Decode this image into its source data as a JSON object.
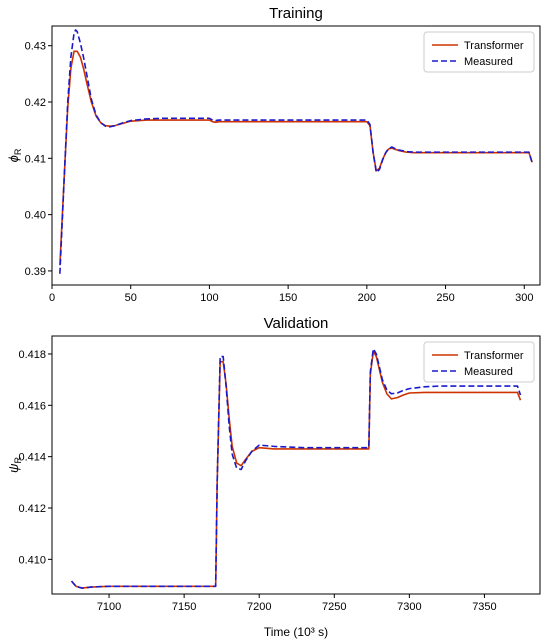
{
  "chart_data": [
    {
      "type": "line",
      "title": "Training",
      "xlabel": "",
      "ylabel": "ϕ_R",
      "ylabel_main": "ϕ",
      "ylabel_sub": "R",
      "xlim": [
        0,
        310
      ],
      "ylim": [
        0.3875,
        0.4335
      ],
      "xticks": [
        0,
        50,
        100,
        150,
        200,
        250,
        300
      ],
      "yticks": [
        0.39,
        0.4,
        0.41,
        0.42,
        0.43
      ],
      "ytick_labels": [
        "0.39",
        "0.40",
        "0.41",
        "0.42",
        "0.43"
      ],
      "grid": false,
      "legend": "top-right",
      "series": [
        {
          "name": "Transformer",
          "color": "#cc3300",
          "dash": "solid",
          "x": [
            5,
            8,
            10,
            12,
            14,
            16,
            18,
            20,
            22,
            25,
            28,
            31,
            34,
            37,
            40,
            45,
            50,
            60,
            70,
            80,
            90,
            100,
            102,
            104,
            106,
            110,
            120,
            140,
            160,
            180,
            200,
            202,
            204,
            206,
            208,
            210,
            212,
            214,
            216,
            218,
            220,
            225,
            230,
            240,
            260,
            280,
            300,
            303,
            305
          ],
          "y": [
            0.391,
            0.408,
            0.419,
            0.426,
            0.429,
            0.429,
            0.428,
            0.426,
            0.4235,
            0.42,
            0.4175,
            0.4163,
            0.4158,
            0.4157,
            0.4158,
            0.4162,
            0.4166,
            0.4168,
            0.4168,
            0.4168,
            0.4168,
            0.4168,
            0.4165,
            0.4164,
            0.4165,
            0.4165,
            0.4165,
            0.4165,
            0.4165,
            0.4165,
            0.4165,
            0.4158,
            0.411,
            0.4078,
            0.4082,
            0.4098,
            0.411,
            0.4117,
            0.4118,
            0.4116,
            0.4114,
            0.4111,
            0.411,
            0.411,
            0.411,
            0.411,
            0.411,
            0.411,
            0.4093
          ]
        },
        {
          "name": "Measured",
          "color": "#1a1acc",
          "dash": "dashed",
          "x": [
            5,
            8,
            10,
            12,
            14,
            15,
            16,
            18,
            20,
            22,
            25,
            28,
            31,
            34,
            37,
            40,
            45,
            50,
            60,
            70,
            80,
            90,
            100,
            102,
            104,
            106,
            110,
            120,
            140,
            160,
            180,
            200,
            202,
            204,
            206,
            208,
            210,
            212,
            214,
            216,
            218,
            220,
            225,
            230,
            240,
            260,
            280,
            300,
            303,
            305
          ],
          "y": [
            0.3895,
            0.408,
            0.42,
            0.428,
            0.4322,
            0.4328,
            0.4325,
            0.4305,
            0.428,
            0.425,
            0.4205,
            0.4177,
            0.4163,
            0.4157,
            0.4156,
            0.4158,
            0.4163,
            0.4167,
            0.417,
            0.4171,
            0.4171,
            0.4171,
            0.4171,
            0.4168,
            0.4167,
            0.4168,
            0.4168,
            0.4168,
            0.4168,
            0.4168,
            0.4168,
            0.4168,
            0.416,
            0.411,
            0.4075,
            0.408,
            0.4097,
            0.411,
            0.4118,
            0.412,
            0.4117,
            0.4115,
            0.4112,
            0.4111,
            0.4111,
            0.4111,
            0.4111,
            0.4111,
            0.4111,
            0.4092
          ]
        }
      ]
    },
    {
      "type": "line",
      "title": "Validation",
      "xlabel": "Time (10³ s)",
      "ylabel": "ψ_R",
      "ylabel_main": "ψ",
      "ylabel_sub": "R",
      "xlim": [
        7062,
        7387
      ],
      "ylim": [
        0.40865,
        0.4187
      ],
      "xticks": [
        7100,
        7150,
        7200,
        7250,
        7300,
        7350
      ],
      "yticks": [
        0.41,
        0.412,
        0.414,
        0.416,
        0.418
      ],
      "ytick_labels": [
        "0.410",
        "0.412",
        "0.414",
        "0.416",
        "0.418"
      ],
      "grid": false,
      "legend": "top-right",
      "series": [
        {
          "name": "Transformer",
          "color": "#cc3300",
          "dash": "solid",
          "x": [
            7075,
            7078,
            7082,
            7088,
            7100,
            7120,
            7150,
            7171,
            7172,
            7174,
            7176,
            7178,
            7180,
            7182,
            7185,
            7188,
            7191,
            7195,
            7200,
            7210,
            7230,
            7250,
            7273,
            7274,
            7276,
            7278,
            7280,
            7282,
            7285,
            7288,
            7292,
            7296,
            7300,
            7310,
            7320,
            7340,
            7360,
            7372,
            7374
          ],
          "y": [
            0.40915,
            0.40895,
            0.40888,
            0.40892,
            0.40895,
            0.40895,
            0.40895,
            0.40895,
            0.413,
            0.4177,
            0.4177,
            0.4168,
            0.4155,
            0.4144,
            0.41375,
            0.41365,
            0.4139,
            0.4142,
            0.41435,
            0.4143,
            0.4143,
            0.4143,
            0.4143,
            0.4172,
            0.4181,
            0.4179,
            0.4174,
            0.4169,
            0.41645,
            0.41625,
            0.4163,
            0.4164,
            0.41648,
            0.4165,
            0.4165,
            0.4165,
            0.4165,
            0.4165,
            0.4162
          ]
        },
        {
          "name": "Measured",
          "color": "#1a1acc",
          "dash": "dashed",
          "x": [
            7075,
            7078,
            7082,
            7088,
            7100,
            7120,
            7150,
            7171,
            7172,
            7174,
            7176,
            7178,
            7180,
            7182,
            7185,
            7188,
            7191,
            7195,
            7200,
            7210,
            7230,
            7250,
            7273,
            7274,
            7276,
            7278,
            7280,
            7282,
            7285,
            7288,
            7292,
            7296,
            7300,
            7310,
            7320,
            7340,
            7360,
            7372,
            7374
          ],
          "y": [
            0.40915,
            0.40895,
            0.40888,
            0.40892,
            0.40895,
            0.40895,
            0.40895,
            0.40895,
            0.413,
            0.4179,
            0.4179,
            0.4167,
            0.4152,
            0.4141,
            0.41355,
            0.4135,
            0.41385,
            0.4142,
            0.41445,
            0.4144,
            0.41435,
            0.41435,
            0.41435,
            0.4173,
            0.4182,
            0.418,
            0.4175,
            0.417,
            0.4166,
            0.41645,
            0.41648,
            0.41658,
            0.41665,
            0.41672,
            0.41675,
            0.41675,
            0.41675,
            0.41675,
            0.4164
          ]
        }
      ]
    }
  ]
}
